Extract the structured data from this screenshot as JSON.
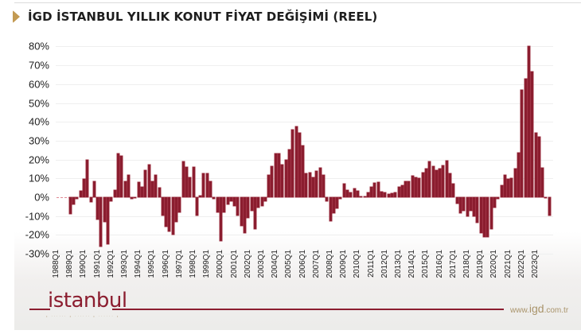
{
  "title": "İGD İSTANBUL YILLIK KONUT FİYAT DEĞİŞİMİ (REEL)",
  "footer": {
    "logo_text": "istanbul",
    "logo_tagline": "• ······ • ······ • ······ •",
    "url_prefix": "www.",
    "url_brand": "igd",
    "url_suffix": ".com.tr"
  },
  "colors": {
    "bar": "#8b1d2f",
    "title_marker": "#c39a52",
    "footer_line": "#8b1d2f",
    "url": "#a9946a"
  },
  "chart_data": {
    "type": "bar",
    "title": "İGD İSTANBUL YILLIK KONUT FİYAT DEĞİŞİMİ (REEL)",
    "xlabel": "",
    "ylabel": "",
    "ylim": [
      -30,
      80
    ],
    "yticks": [
      "80%",
      "70%",
      "60%",
      "50%",
      "40%",
      "30%",
      "20%",
      "10%",
      "0%",
      "-10%",
      "-20%",
      "-30%"
    ],
    "ytick_values": [
      80,
      70,
      60,
      50,
      40,
      30,
      20,
      10,
      0,
      -10,
      -20,
      -30
    ],
    "xtick_labels": [
      "1988Q1",
      "1989Q1",
      "1990Q1",
      "1991Q1",
      "1992Q1",
      "1993Q1",
      "1994Q1",
      "1995Q1",
      "1996Q1",
      "1997Q1",
      "1998Q1",
      "1999Q1",
      "2000Q1",
      "2001Q1",
      "2002Q1",
      "2003Q1",
      "2004Q1",
      "2005Q1",
      "2006Q1",
      "2007Q1",
      "2008Q1",
      "2009Q1",
      "2010Q1",
      "2011Q1",
      "2012Q1",
      "2013Q1",
      "2014Q1",
      "2015Q1",
      "2016Q1",
      "2017Q1",
      "2018Q1",
      "2019Q1",
      "2020Q1",
      "2021Q1",
      "2022Q1",
      "2023Q1"
    ],
    "grid": true,
    "legend": null,
    "unit": "%",
    "x_start": "1989Q1",
    "frequency": "quarterly",
    "values": [
      -9,
      -4,
      -1,
      3.5,
      9.5,
      20,
      -2.5,
      8.5,
      -12,
      -26,
      -13,
      -25,
      -2,
      4,
      23,
      22,
      8.5,
      12,
      -1,
      0,
      8,
      5.5,
      14.5,
      17.5,
      8.5,
      12,
      5,
      -9.5,
      -15.5,
      -18,
      -20,
      -13,
      -8,
      19,
      16,
      10.5,
      16,
      -9.5,
      1,
      12.5,
      12.5,
      8.5,
      -1,
      -8,
      -23,
      -8,
      -4,
      -2,
      -4.5,
      -9.5,
      -15,
      -19,
      -11,
      -7,
      -17,
      -5.5,
      -4.5,
      -2,
      12,
      16.5,
      23,
      23,
      17.5,
      20,
      25.5,
      36,
      37.5,
      34,
      27.5,
      12.5,
      13,
      10.5,
      14,
      15.5,
      12,
      -2,
      -12.5,
      -8.5,
      -6,
      -1,
      7,
      4,
      2.5,
      4.5,
      3.5,
      0.5,
      0.5,
      2.5,
      5.5,
      7.5,
      8,
      3,
      2.5,
      1.5,
      2,
      2.5,
      5.5,
      6.5,
      8.5,
      8.5,
      11.5,
      10.5,
      10,
      13,
      15,
      19,
      16.5,
      14.5,
      15,
      17,
      19.5,
      12.5,
      7,
      -3.5,
      -8.5,
      -7,
      -10,
      -7,
      -10,
      -13.5,
      -19,
      -21,
      -21,
      -17,
      -5.5,
      -1,
      6.5,
      12,
      9.5,
      10,
      15,
      23.5,
      57,
      63,
      80,
      66.5,
      34,
      32,
      15.5,
      -0.5,
      -9.5
    ]
  }
}
